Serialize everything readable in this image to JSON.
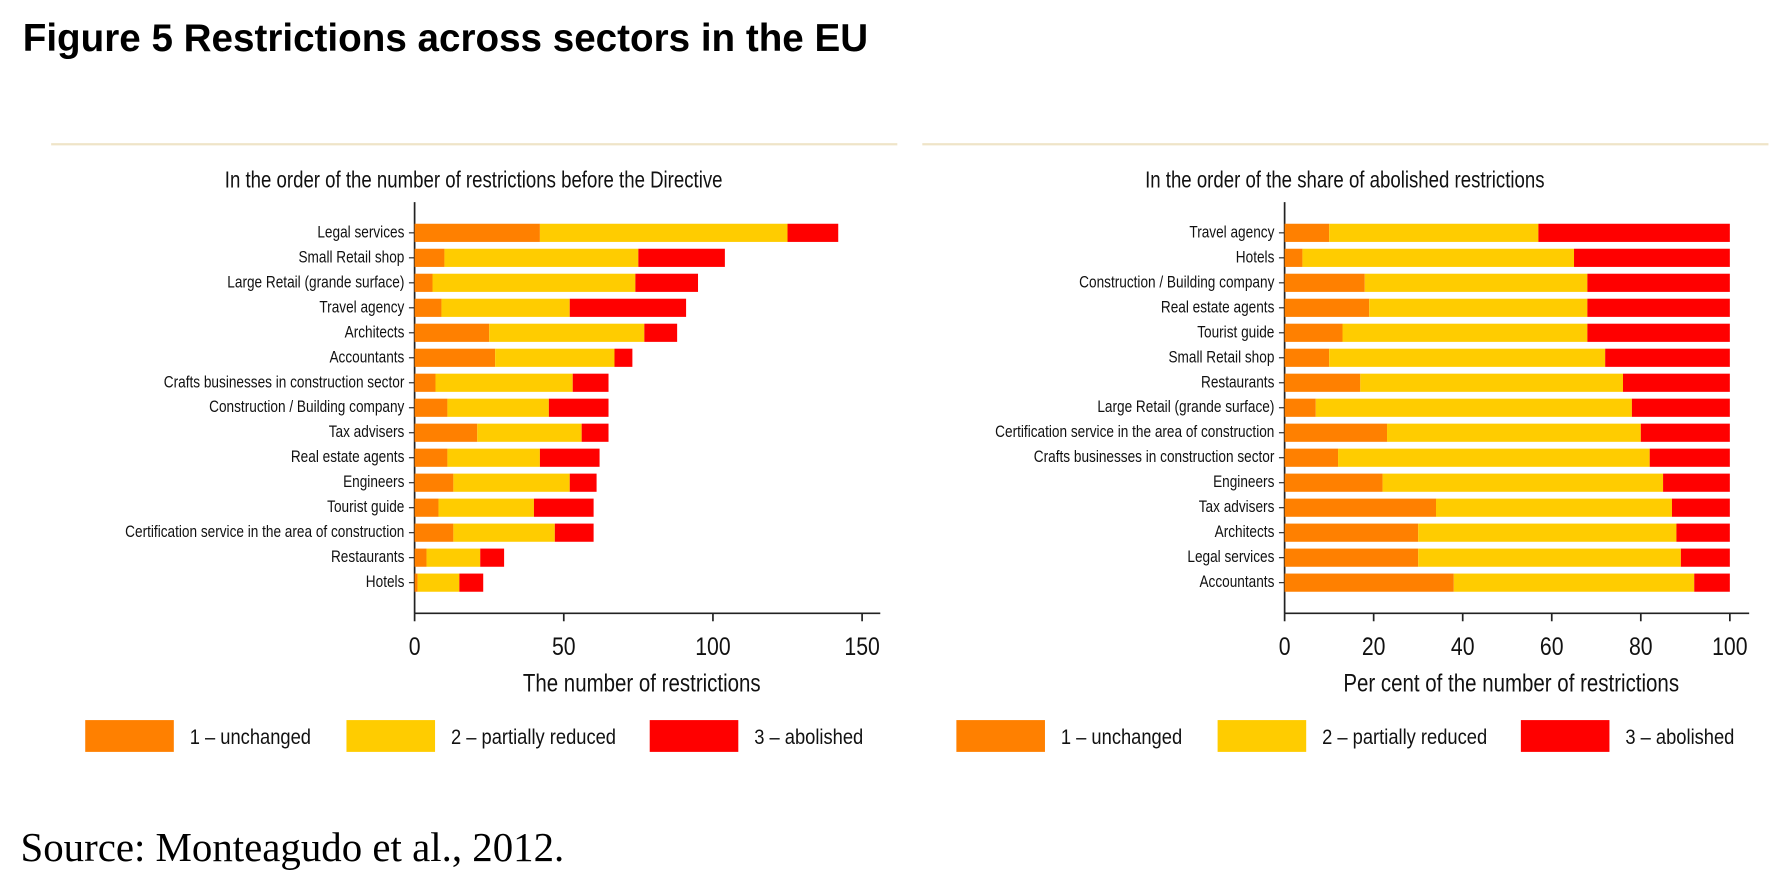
{
  "title": "Figure 5 Restrictions across sectors in the EU",
  "source": "Source: Monteagudo et al., 2012.",
  "chart_data": [
    {
      "type": "bar",
      "orientation": "horizontal",
      "stacked": true,
      "subtitle": "In the order of the number of restrictions before the Directive",
      "xlabel": "The number of restrictions",
      "categories": [
        "Legal services",
        "Small Retail shop",
        "Large Retail (grande surface)",
        "Travel agency",
        "Architects",
        "Accountants",
        "Crafts businesses in construction sector",
        "Construction / Building company",
        "Tax advisers",
        "Real estate agents",
        "Engineers",
        "Tourist guide",
        "Certification service in the area of construction",
        "Restaurants",
        "Hotels"
      ],
      "series": [
        {
          "name": "1 – unchanged",
          "color": "#ff8000",
          "values": [
            42,
            10,
            6,
            9,
            25,
            27,
            7,
            11,
            21,
            11,
            13,
            8,
            13,
            4,
            1
          ]
        },
        {
          "name": "2 – partially reduced",
          "color": "#ffcc00",
          "values": [
            83,
            65,
            68,
            43,
            52,
            40,
            46,
            34,
            35,
            31,
            39,
            32,
            34,
            18,
            14
          ]
        },
        {
          "name": "3 – abolished",
          "color": "#ff0000",
          "values": [
            17,
            29,
            21,
            39,
            11,
            6,
            12,
            20,
            9,
            20,
            9,
            20,
            13,
            8,
            8
          ]
        }
      ],
      "xlim": [
        0,
        150
      ],
      "xticks": [
        0,
        50,
        100,
        150
      ],
      "legend": "bottom"
    },
    {
      "type": "bar",
      "orientation": "horizontal",
      "stacked": true,
      "subtitle": "In the order of the share of abolished restrictions",
      "xlabel": "Per cent of the number of restrictions",
      "categories": [
        "Travel agency",
        "Hotels",
        "Construction / Building company",
        "Real estate agents",
        "Tourist guide",
        "Small Retail shop",
        "Restaurants",
        "Large Retail (grande surface)",
        "Certification service in the area of construction",
        "Crafts businesses in construction sector",
        "Engineers",
        "Tax advisers",
        "Architects",
        "Legal services",
        "Accountants"
      ],
      "series": [
        {
          "name": "1 – unchanged",
          "color": "#ff8000",
          "values": [
            10,
            4,
            18,
            19,
            13,
            10,
            17,
            7,
            23,
            12,
            22,
            34,
            30,
            30,
            38
          ]
        },
        {
          "name": "2 – partially reduced",
          "color": "#ffcc00",
          "values": [
            47,
            61,
            50,
            49,
            55,
            62,
            59,
            71,
            57,
            70,
            63,
            53,
            58,
            59,
            54
          ]
        },
        {
          "name": "3 – abolished",
          "color": "#ff0000",
          "values": [
            43,
            35,
            32,
            32,
            32,
            28,
            24,
            22,
            20,
            18,
            15,
            13,
            12,
            11,
            8
          ]
        }
      ],
      "xlim": [
        0,
        100
      ],
      "xticks": [
        0,
        20,
        40,
        60,
        80,
        100
      ],
      "legend": "bottom"
    }
  ]
}
